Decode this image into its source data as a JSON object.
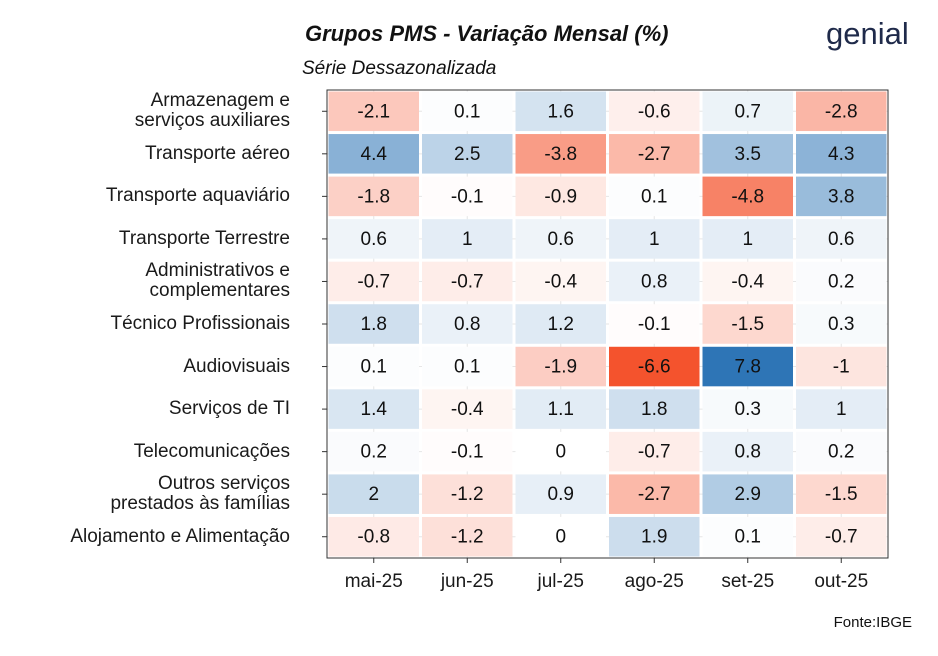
{
  "chart_data": {
    "type": "heatmap",
    "title": "Grupos PMS - Variação Mensal (%)",
    "subtitle": "Série Dessazonalizada",
    "logo": "genial",
    "source": "Fonte:IBGE",
    "categories": [
      "mai-25",
      "jun-25",
      "jul-25",
      "ago-25",
      "set-25",
      "out-25"
    ],
    "rows": [
      "Armazenagem e\nserviços auxiliares",
      "Transporte aéreo",
      "Transporte aquaviário",
      "Transporte Terrestre",
      "Administrativos e\ncomplementares",
      "Técnico Profissionais",
      "Audiovisuais",
      "Serviços de TI",
      "Telecomunicações",
      "Outros serviços\nprestados às famílias",
      "Alojamento e Alimentação"
    ],
    "values": [
      [
        -2.1,
        0.1,
        1.6,
        -0.6,
        0.7,
        -2.8
      ],
      [
        4.4,
        2.5,
        -3.8,
        -2.7,
        3.5,
        4.3
      ],
      [
        -1.8,
        -0.1,
        -0.9,
        0.1,
        -4.8,
        3.8
      ],
      [
        0.6,
        1,
        0.6,
        1,
        1,
        0.6
      ],
      [
        -0.7,
        -0.7,
        -0.4,
        0.8,
        -0.4,
        0.2
      ],
      [
        1.8,
        0.8,
        1.2,
        -0.1,
        -1.5,
        0.3
      ],
      [
        0.1,
        0.1,
        -1.9,
        -6.6,
        7.8,
        -1
      ],
      [
        1.4,
        -0.4,
        1.1,
        1.8,
        0.3,
        1
      ],
      [
        0.2,
        -0.1,
        0,
        -0.7,
        0.8,
        0.2
      ],
      [
        2,
        -1.2,
        0.9,
        -2.7,
        2.9,
        -1.5
      ],
      [
        -0.8,
        -1.2,
        0,
        1.9,
        0.1,
        -0.7
      ]
    ],
    "color_low": "#f4532d",
    "color_mid": "#ffffff",
    "color_high": "#2e75b6",
    "grid": true
  }
}
